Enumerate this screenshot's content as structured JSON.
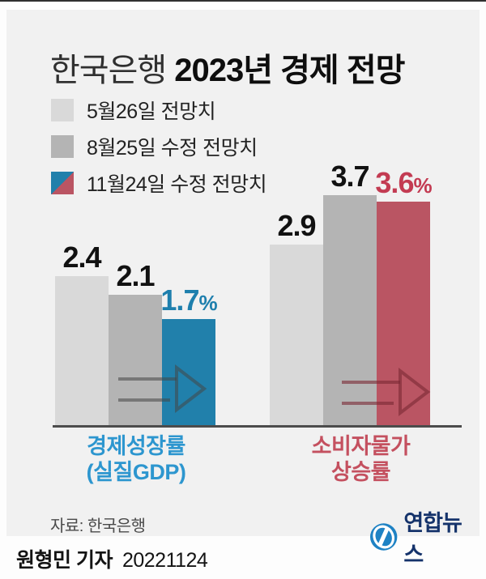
{
  "title": {
    "prefix": "한국은행",
    "main": "2023년 경제 전망"
  },
  "legend": {
    "items": [
      {
        "label": "5월26일 전망치",
        "color": "#d9d9d9",
        "split": false
      },
      {
        "label": "8월25일 수정 전망치",
        "color": "#b4b4b4",
        "split": false
      },
      {
        "label": "11월24일 수정 전망치",
        "split": true,
        "color_top": "#2180ab",
        "color_bottom": "#ba5563"
      }
    ]
  },
  "chart_data": {
    "type": "bar",
    "title": "한국은행 2023년 경제 전망",
    "unit": "%",
    "categories": [
      "경제성장률 (실질GDP)",
      "소비자물가 상승률"
    ],
    "series": [
      {
        "name": "5월26일 전망치",
        "values": [
          2.4,
          2.9
        ],
        "colors": [
          "#d9d9d9",
          "#d9d9d9"
        ]
      },
      {
        "name": "8월25일 수정 전망치",
        "values": [
          2.1,
          3.7
        ],
        "colors": [
          "#b4b4b4",
          "#b4b4b4"
        ]
      },
      {
        "name": "11월24일 수정 전망치",
        "values": [
          1.7,
          3.6
        ],
        "colors": [
          "#2180ab",
          "#ba5563"
        ]
      }
    ],
    "value_labels": [
      [
        "2.4",
        "2.1",
        "1.7%"
      ],
      [
        "2.9",
        "3.7",
        "3.6%"
      ]
    ],
    "value_label_colors": [
      [
        "#111111",
        "#111111",
        "#1e7fad"
      ],
      [
        "#111111",
        "#111111",
        "#c33b52"
      ]
    ],
    "arrow_colors": [
      "rgba(70,70,70,0.55)",
      "rgba(122,40,52,0.6)"
    ],
    "ylim": [
      0,
      4
    ],
    "grid": false,
    "legend_position": "top-left"
  },
  "category_labels": [
    {
      "line1": "경제성장률",
      "line2": "(실질GDP)",
      "color": "#2d96cf"
    },
    {
      "line1": "소비자물가",
      "line2": "상승률",
      "color": "#c4505f"
    }
  ],
  "source": "자료: 한국은행",
  "logo": {
    "text": "연합뉴스",
    "emblem_color": "#1e82c4",
    "text_color": "#15336b"
  },
  "credit": {
    "reporter": "원형민 기자",
    "date": "20221124"
  }
}
